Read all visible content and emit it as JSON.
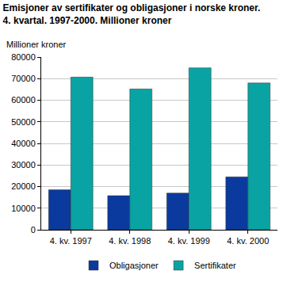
{
  "chart_data": {
    "type": "bar",
    "title": "Emisjoner av sertifikater og obligasjoner i norske kroner.",
    "subtitle": "4. kvartal. 1997-2000. Millioner kroner",
    "y_label": "Millioner kroner",
    "categories": [
      "4. kv. 1997",
      "4. kv. 1998",
      "4. kv. 1999",
      "4. kv. 2000"
    ],
    "series": [
      {
        "name": "Obligasjoner",
        "color": "#0b3a9e",
        "values": [
          18500,
          15800,
          17000,
          24500
        ]
      },
      {
        "name": "Sertifikater",
        "color": "#0aa3a3",
        "values": [
          70700,
          65200,
          75000,
          68000
        ]
      }
    ],
    "ylim": [
      0,
      80000
    ],
    "yticks": [
      0,
      10000,
      20000,
      30000,
      40000,
      50000,
      60000,
      70000,
      80000
    ],
    "grid": true,
    "legend": "bottom"
  }
}
